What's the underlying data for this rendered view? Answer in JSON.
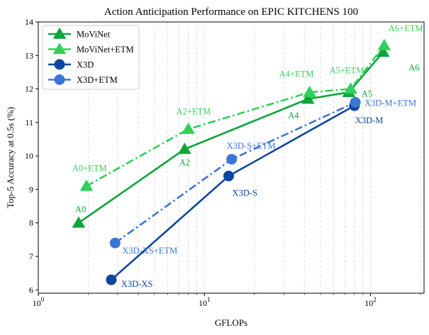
{
  "chart_data": {
    "type": "line",
    "title": "Action Anticipation Performance on EPIC KITCHENS 100",
    "xlabel": "GFLOPs",
    "ylabel": "Top-5 Accuracy at 0.5s (%)",
    "x_scale": "log",
    "xlim": [
      1,
      210
    ],
    "ylim": [
      5.9,
      14
    ],
    "x_ticks": [
      1,
      10,
      100
    ],
    "x_tick_labels": [
      "10^0",
      "10^1",
      "10^2"
    ],
    "y_ticks": [
      6,
      7,
      8,
      9,
      10,
      11,
      12,
      13,
      14
    ],
    "grid": "vertical minor, dashed",
    "legend_position": "top-left",
    "series": [
      {
        "name": "MoViNet",
        "color": "#0ca63a",
        "marker": "triangle",
        "line_style": "solid",
        "points": [
          {
            "x": 1.75,
            "y": 8.0,
            "label": "A0"
          },
          {
            "x": 7.6,
            "y": 10.2,
            "label": "A2"
          },
          {
            "x": 42,
            "y": 11.7,
            "label": "A4"
          },
          {
            "x": 74,
            "y": 11.9,
            "label": "A5"
          },
          {
            "x": 119,
            "y": 13.1,
            "label": "A6"
          }
        ]
      },
      {
        "name": "MoViNet+ETM",
        "color": "#2fd15a",
        "marker": "triangle",
        "line_style": "dashdot",
        "points": [
          {
            "x": 1.95,
            "y": 9.1,
            "label": "A0+ETM"
          },
          {
            "x": 8.0,
            "y": 10.8,
            "label": "A2+ETM"
          },
          {
            "x": 43,
            "y": 11.9,
            "label": "A4+ETM"
          },
          {
            "x": 76,
            "y": 12.0,
            "label": "A5+ETM"
          },
          {
            "x": 121,
            "y": 13.3,
            "label": "A6+ETM"
          }
        ]
      },
      {
        "name": "X3D",
        "color": "#0d469e",
        "marker": "circle",
        "line_style": "solid",
        "points": [
          {
            "x": 2.75,
            "y": 6.3,
            "label": "X3D-XS"
          },
          {
            "x": 14,
            "y": 9.4,
            "label": "X3D-S"
          },
          {
            "x": 80,
            "y": 11.5,
            "label": "X3D-M"
          }
        ]
      },
      {
        "name": "X3D+ETM",
        "color": "#3b75d6",
        "marker": "circle",
        "line_style": "dashdot",
        "points": [
          {
            "x": 2.9,
            "y": 7.4,
            "label": "X3D-XS+ETM"
          },
          {
            "x": 14.6,
            "y": 9.9,
            "label": "X3D-S+ETM"
          },
          {
            "x": 81,
            "y": 11.6,
            "label": "X3D-M+ETM"
          }
        ]
      }
    ]
  }
}
